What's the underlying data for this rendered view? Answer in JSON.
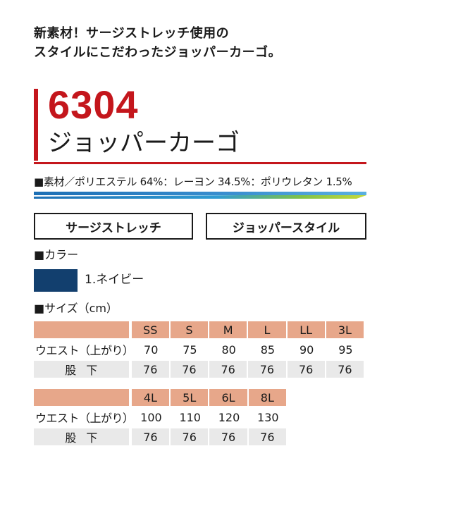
{
  "tagline": {
    "line1": "新素材！サージストレッチ使用の",
    "line2": "スタイルにこだわったジョッパーカーゴ。"
  },
  "product": {
    "number": "6304",
    "name": "ジョッパーカーゴ",
    "material": "■素材／ポリエステル 64%：レーヨン 34.5%：ポリウレタン 1.5%"
  },
  "features": [
    "サージストレッチ",
    "ジョッパースタイル"
  ],
  "color_section": {
    "label": "■カラー",
    "items": [
      {
        "name": "1.ネイビー",
        "hex": "#123f6e"
      }
    ]
  },
  "size_section": {
    "label": "■サイズ（cm）",
    "table1": {
      "sizes": [
        "SS",
        "S",
        "M",
        "L",
        "LL",
        "3L"
      ],
      "waist_label": "ウエスト（上がり）",
      "waist": [
        "70",
        "75",
        "80",
        "85",
        "90",
        "95"
      ],
      "inseam_label": "股下",
      "inseam": [
        "76",
        "76",
        "76",
        "76",
        "76",
        "76"
      ]
    },
    "table2": {
      "sizes": [
        "4L",
        "5L",
        "6L",
        "8L"
      ],
      "waist_label": "ウエスト（上がり）",
      "waist": [
        "100",
        "110",
        "120",
        "130"
      ],
      "inseam_label": "股下",
      "inseam": [
        "76",
        "76",
        "76",
        "76"
      ]
    }
  },
  "colors": {
    "accent_red": "#c4161c",
    "header_salmon": "#e7a78a",
    "row_grey": "#e9e9e9"
  }
}
